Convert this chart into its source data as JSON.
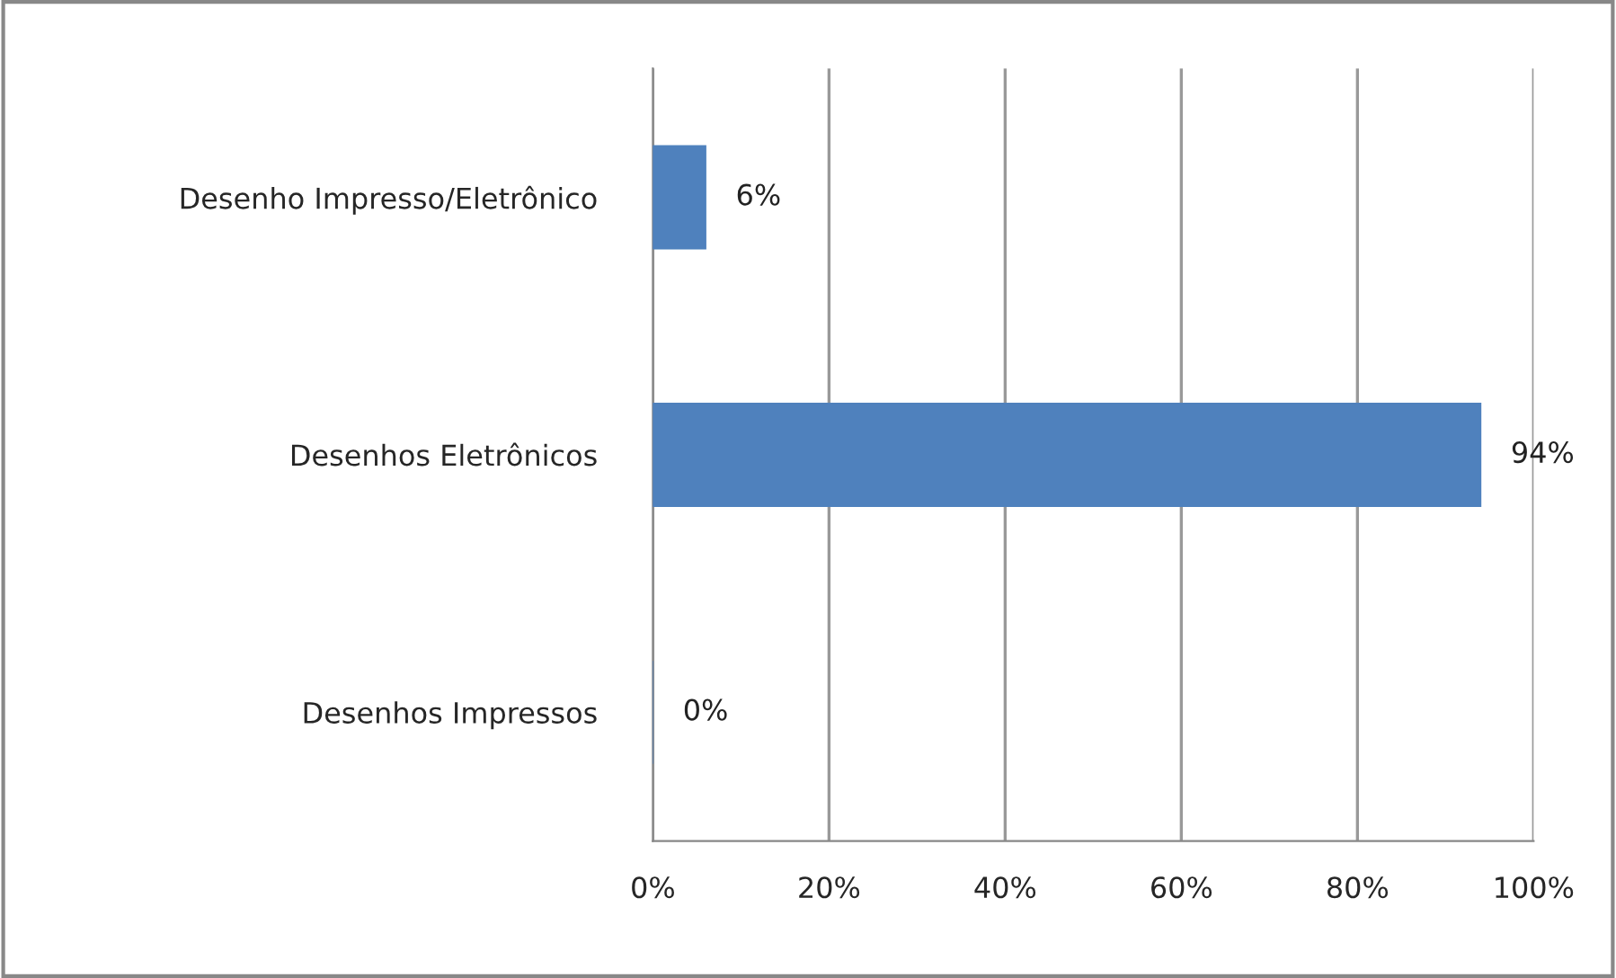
{
  "chart_data": {
    "type": "bar",
    "orientation": "horizontal",
    "categories": [
      "Desenho Impresso/Eletrônico",
      "Desenhos Eletrônicos",
      "Desenhos Impressos"
    ],
    "values": [
      6,
      94,
      0
    ],
    "color": "#4f81bd",
    "value_labels": [
      "6%",
      "94%",
      "0%"
    ],
    "xlim": [
      0,
      100
    ],
    "xticks": [
      {
        "value": 0,
        "label": "0%"
      },
      {
        "value": 20,
        "label": "20%"
      },
      {
        "value": 40,
        "label": "40%"
      },
      {
        "value": 60,
        "label": "60%"
      },
      {
        "value": 80,
        "label": "80%"
      },
      {
        "value": 100,
        "label": "100%"
      }
    ],
    "grid": "x",
    "legend": false
  }
}
